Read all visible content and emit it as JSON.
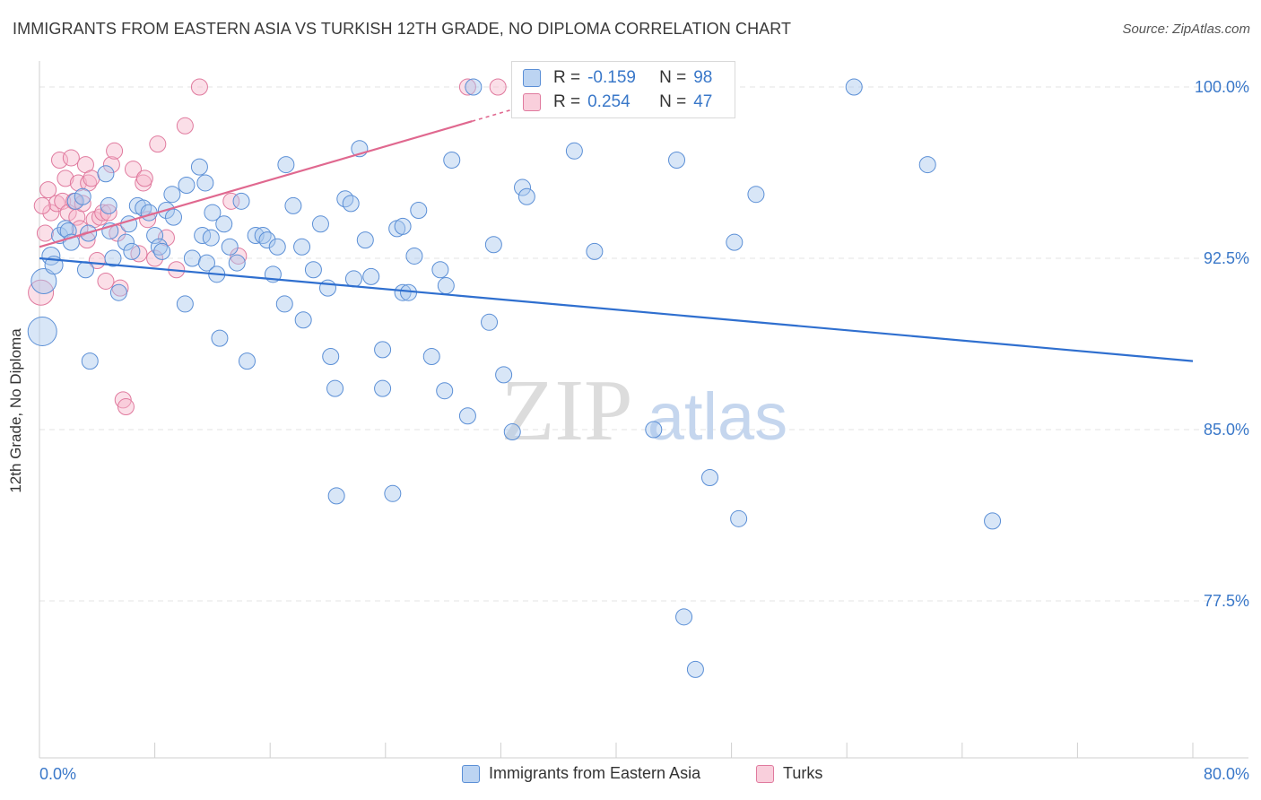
{
  "title": "IMMIGRANTS FROM EASTERN ASIA VS TURKISH 12TH GRADE, NO DIPLOMA CORRELATION CHART",
  "source": "Source: ZipAtlas.com",
  "watermark": {
    "zip": "ZIP",
    "atlas": "atlas"
  },
  "colors": {
    "blue_fill": "#a9c8ee",
    "blue_stroke": "#5b8fd6",
    "blue_line": "#2f6fcf",
    "pink_fill": "#f6b7cb",
    "pink_stroke": "#e07a9e",
    "pink_line": "#e0688f",
    "axis_text": "#3a78c9",
    "grid": "#e3e3e3"
  },
  "stats_legend": [
    {
      "r_label": "R =",
      "r_value": "-0.159",
      "n_label": "N =",
      "n_value": "98",
      "color": "blue"
    },
    {
      "r_label": "R =",
      "r_value": "0.254",
      "n_label": "N =",
      "n_value": "47",
      "color": "pink"
    }
  ],
  "chart_data": {
    "type": "scatter",
    "title": "IMMIGRANTS FROM EASTERN ASIA VS TURKISH 12TH GRADE, NO DIPLOMA CORRELATION CHART",
    "xlabel": "",
    "ylabel": "12th Grade, No Diploma",
    "xlim": [
      0,
      80
    ],
    "ylim": [
      70.5,
      101.5
    ],
    "x_tick_labels": [
      "0.0%",
      "80.0%"
    ],
    "y_ticks": [
      77.5,
      85.0,
      92.5,
      100.0
    ],
    "y_tick_labels": [
      "77.5%",
      "85.0%",
      "92.5%",
      "100.0%"
    ],
    "grid": true,
    "legend_position": "bottom",
    "series": [
      {
        "name": "Immigrants from Eastern Asia",
        "color": "blue",
        "trend": {
          "x": [
            0,
            80
          ],
          "y": [
            92.5,
            88.0
          ]
        },
        "points": [
          [
            0.2,
            89.3,
            16
          ],
          [
            0.3,
            91.5,
            14
          ],
          [
            0.8,
            92.6,
            10
          ],
          [
            1.0,
            92.2,
            10
          ],
          [
            1.4,
            93.5,
            9
          ],
          [
            1.8,
            93.8,
            9
          ],
          [
            2.0,
            93.7,
            9
          ],
          [
            2.2,
            93.2,
            9
          ],
          [
            2.5,
            95.0,
            9
          ],
          [
            3.4,
            93.6,
            9
          ],
          [
            3.0,
            95.2,
            9
          ],
          [
            3.2,
            92.0,
            9
          ],
          [
            3.5,
            88.0,
            9
          ],
          [
            4.6,
            96.2,
            9
          ],
          [
            4.8,
            94.8,
            9
          ],
          [
            4.9,
            93.7,
            9
          ],
          [
            5.1,
            92.5,
            9
          ],
          [
            5.5,
            91.0,
            9
          ],
          [
            6.0,
            93.2,
            9
          ],
          [
            6.2,
            94.0,
            9
          ],
          [
            6.4,
            92.8,
            9
          ],
          [
            6.8,
            94.8,
            9
          ],
          [
            7.2,
            94.7,
            9
          ],
          [
            7.6,
            94.5,
            9
          ],
          [
            8.0,
            93.5,
            9
          ],
          [
            8.3,
            93.0,
            9
          ],
          [
            8.5,
            92.8,
            9
          ],
          [
            8.8,
            94.6,
            9
          ],
          [
            9.2,
            95.3,
            9
          ],
          [
            9.3,
            94.3,
            9
          ],
          [
            10.1,
            90.5,
            9
          ],
          [
            10.2,
            95.7,
            9
          ],
          [
            10.6,
            92.5,
            9
          ],
          [
            11.1,
            96.5,
            9
          ],
          [
            11.3,
            93.5,
            9
          ],
          [
            11.5,
            95.8,
            9
          ],
          [
            11.6,
            92.3,
            9
          ],
          [
            11.9,
            93.4,
            9
          ],
          [
            12.0,
            94.5,
            9
          ],
          [
            12.3,
            91.8,
            9
          ],
          [
            12.5,
            89.0,
            9
          ],
          [
            12.8,
            94.0,
            9
          ],
          [
            13.2,
            93.0,
            9
          ],
          [
            13.7,
            92.3,
            9
          ],
          [
            14.0,
            95.0,
            9
          ],
          [
            14.4,
            88.0,
            9
          ],
          [
            15.0,
            93.5,
            9
          ],
          [
            15.5,
            93.5,
            9
          ],
          [
            15.8,
            93.3,
            9
          ],
          [
            16.2,
            91.8,
            9
          ],
          [
            16.5,
            93.0,
            9
          ],
          [
            17.0,
            90.5,
            9
          ],
          [
            17.1,
            96.6,
            9
          ],
          [
            17.6,
            94.8,
            9
          ],
          [
            18.2,
            93.0,
            9
          ],
          [
            18.3,
            89.8,
            9
          ],
          [
            19.0,
            92.0,
            9
          ],
          [
            19.5,
            94.0,
            9
          ],
          [
            20.0,
            91.2,
            9
          ],
          [
            20.2,
            88.2,
            9
          ],
          [
            20.5,
            86.8,
            9
          ],
          [
            20.6,
            82.1,
            9
          ],
          [
            21.2,
            95.1,
            9
          ],
          [
            21.6,
            94.9,
            9
          ],
          [
            21.8,
            91.6,
            9
          ],
          [
            22.2,
            97.3,
            9
          ],
          [
            22.6,
            93.3,
            9
          ],
          [
            23.0,
            91.7,
            9
          ],
          [
            23.8,
            88.5,
            9
          ],
          [
            23.8,
            86.8,
            9
          ],
          [
            24.5,
            82.2,
            9
          ],
          [
            24.8,
            93.8,
            9
          ],
          [
            25.2,
            93.9,
            9
          ],
          [
            25.2,
            91.0,
            9
          ],
          [
            25.6,
            91.0,
            9
          ],
          [
            26.0,
            92.6,
            9
          ],
          [
            26.3,
            94.6,
            9
          ],
          [
            27.2,
            88.2,
            9
          ],
          [
            27.8,
            92.0,
            9
          ],
          [
            28.1,
            86.7,
            9
          ],
          [
            28.2,
            91.3,
            9
          ],
          [
            28.6,
            96.8,
            9
          ],
          [
            29.7,
            85.6,
            9
          ],
          [
            30.1,
            100.0,
            9
          ],
          [
            31.2,
            89.7,
            9
          ],
          [
            31.5,
            93.1,
            9
          ],
          [
            32.2,
            87.4,
            9
          ],
          [
            32.8,
            84.9,
            9
          ],
          [
            33.5,
            95.6,
            9
          ],
          [
            33.8,
            95.2,
            9
          ],
          [
            37.1,
            97.2,
            9
          ],
          [
            38.5,
            92.8,
            9
          ],
          [
            42.6,
            85.0,
            9
          ],
          [
            44.2,
            96.8,
            9
          ],
          [
            44.7,
            76.8,
            9
          ],
          [
            45.5,
            74.5,
            9
          ],
          [
            46.5,
            82.9,
            9
          ],
          [
            48.5,
            81.1,
            9
          ],
          [
            48.2,
            93.2,
            9
          ],
          [
            49.7,
            95.3,
            9
          ],
          [
            56.5,
            100.0,
            9
          ],
          [
            61.6,
            96.6,
            9
          ],
          [
            66.1,
            81.0,
            9
          ]
        ]
      },
      {
        "name": "Turks",
        "color": "pink",
        "trend": {
          "x": [
            0,
            30
          ],
          "y": [
            93.0,
            98.5
          ]
        },
        "points": [
          [
            0.1,
            91.0,
            14
          ],
          [
            0.4,
            93.6,
            9
          ],
          [
            0.6,
            95.5,
            9
          ],
          [
            0.8,
            94.5,
            9
          ],
          [
            1.2,
            94.9,
            9
          ],
          [
            1.4,
            96.8,
            9
          ],
          [
            1.6,
            95.0,
            9
          ],
          [
            1.8,
            96.0,
            9
          ],
          [
            2.0,
            94.5,
            9
          ],
          [
            2.2,
            96.9,
            9
          ],
          [
            2.4,
            95.0,
            9
          ],
          [
            2.6,
            94.3,
            9
          ],
          [
            2.7,
            95.8,
            9
          ],
          [
            2.8,
            93.8,
            9
          ],
          [
            3.0,
            94.9,
            9
          ],
          [
            3.2,
            96.6,
            9
          ],
          [
            3.3,
            93.3,
            9
          ],
          [
            3.4,
            95.8,
            9
          ],
          [
            3.6,
            96.0,
            9
          ],
          [
            3.8,
            94.2,
            9
          ],
          [
            4.0,
            92.4,
            9
          ],
          [
            4.2,
            94.3,
            9
          ],
          [
            4.4,
            94.5,
            9
          ],
          [
            4.6,
            91.5,
            9
          ],
          [
            4.8,
            94.5,
            9
          ],
          [
            5.0,
            96.6,
            9
          ],
          [
            5.2,
            97.2,
            9
          ],
          [
            5.4,
            93.6,
            9
          ],
          [
            5.6,
            91.2,
            9
          ],
          [
            5.8,
            86.3,
            9
          ],
          [
            6.0,
            86.0,
            9
          ],
          [
            6.5,
            96.4,
            9
          ],
          [
            6.9,
            92.7,
            9
          ],
          [
            7.2,
            95.8,
            9
          ],
          [
            7.3,
            96.0,
            9
          ],
          [
            7.5,
            94.2,
            9
          ],
          [
            8.0,
            92.5,
            9
          ],
          [
            8.2,
            97.5,
            9
          ],
          [
            8.8,
            93.4,
            9
          ],
          [
            9.5,
            92.0,
            9
          ],
          [
            10.1,
            98.3,
            9
          ],
          [
            11.1,
            100.0,
            9
          ],
          [
            13.3,
            95.0,
            9
          ],
          [
            13.8,
            92.6,
            9
          ],
          [
            29.7,
            100.0,
            9
          ],
          [
            31.8,
            100.0,
            9
          ],
          [
            0.2,
            94.8,
            9
          ]
        ]
      }
    ]
  }
}
